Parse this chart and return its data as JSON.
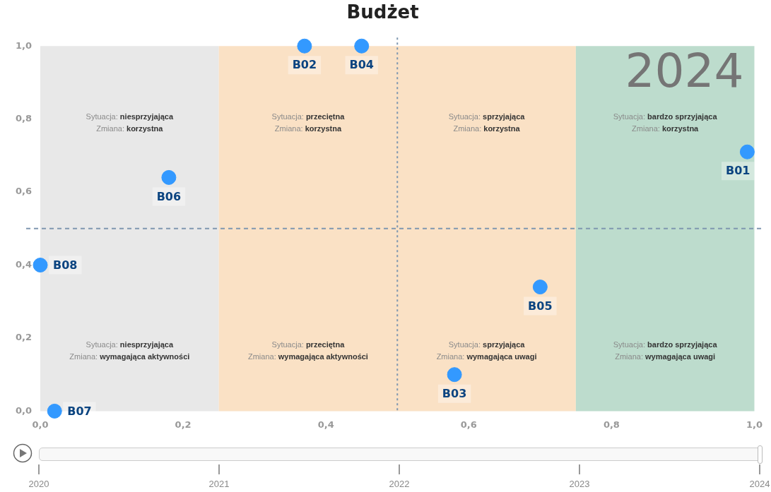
{
  "chart_data": {
    "type": "scatter",
    "title": "Budżet",
    "series": [
      {
        "name": "B01",
        "color": "#3399ff",
        "x": [
          0.99
        ],
        "values": [
          0.71
        ]
      },
      {
        "name": "B02",
        "color": "#3399ff",
        "x": [
          0.37
        ],
        "values": [
          1.0
        ]
      },
      {
        "name": "B03",
        "color": "#3399ff",
        "x": [
          0.58
        ],
        "values": [
          0.1
        ]
      },
      {
        "name": "B04",
        "color": "#3399ff",
        "x": [
          0.45
        ],
        "values": [
          1.0
        ]
      },
      {
        "name": "B05",
        "color": "#3399ff",
        "x": [
          0.7
        ],
        "values": [
          0.34
        ]
      },
      {
        "name": "B06",
        "color": "#3399ff",
        "x": [
          0.18
        ],
        "values": [
          0.64
        ]
      },
      {
        "name": "B07",
        "color": "#3399ff",
        "x": [
          0.02
        ],
        "values": [
          0.0
        ]
      },
      {
        "name": "B08",
        "color": "#3399ff",
        "x": [
          0.0
        ],
        "values": [
          0.4
        ]
      }
    ],
    "xlim": [
      0,
      1
    ],
    "ylim": [
      0,
      1
    ],
    "xticks": [
      {
        "value": 0,
        "label": "0,0"
      },
      {
        "value": 0.2,
        "label": "0,2"
      },
      {
        "value": 0.4,
        "label": "0,4"
      },
      {
        "value": 0.6,
        "label": "0,6"
      },
      {
        "value": 0.8,
        "label": "0,8"
      },
      {
        "value": 1,
        "label": "1,0"
      }
    ],
    "yticks": [
      {
        "value": 0,
        "label": "0,0"
      },
      {
        "value": 0.2,
        "label": "0,2"
      },
      {
        "value": 0.4,
        "label": "0,4"
      },
      {
        "value": 0.6,
        "label": "0,6"
      },
      {
        "value": 0.8,
        "label": "0,8"
      },
      {
        "value": 1,
        "label": "1,0"
      }
    ],
    "bands": [
      {
        "axis": "x",
        "from": 0,
        "to": 0.25,
        "color": "#e8e8e8"
      },
      {
        "axis": "x",
        "from": 0.25,
        "to": 0.75,
        "color": "#fae1c5"
      },
      {
        "axis": "x",
        "from": 0.75,
        "to": 1,
        "color": "#bddccd"
      }
    ],
    "ref_lines": [
      {
        "axis": "x",
        "value": 0.5,
        "color": "#7f97b0",
        "line_style": "dotted"
      },
      {
        "axis": "y",
        "value": 0.5,
        "color": "#7f97b0",
        "line_style": "dashed"
      }
    ],
    "annotations": [
      "2024",
      "2020",
      "2021",
      "2022",
      "2023",
      "2024",
      "Sytuacja: niesprzyjająca\nZmiana: korzystna",
      "Sytuacja: przeciętna\nZmiana: korzystna",
      "Sytuacja: sprzyjająca\nZmiana: korzystna",
      "Sytuacja: bardzo sprzyjająca\nZmiana: korzystna",
      "Sytuacja: niesprzyjająca\nZmiana: wymagająca aktywności",
      "Sytuacja: przeciętna\nZmiana: wymagająca aktywności",
      "Sytuacja: sprzyjająca\nZmiana: wymagająca uwagi",
      "Sytuacja: bardzo sprzyjająca\nZmiana: wymagająca uwagi"
    ],
    "marker": "circle",
    "grid": false,
    "legend": false
  }
}
